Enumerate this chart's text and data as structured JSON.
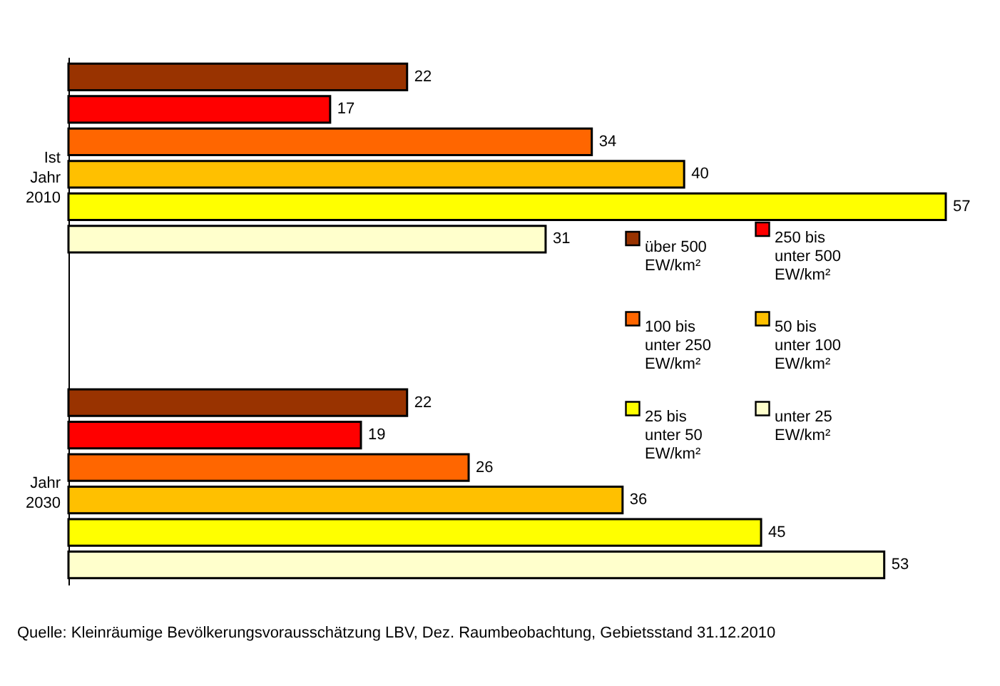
{
  "chart_data": {
    "type": "bar",
    "orientation": "horizontal",
    "categories": [
      "Ist Jahr 2010",
      "Jahr 2030"
    ],
    "series": [
      {
        "name": "über 500 EW/km²",
        "color": "#993300",
        "values": [
          22,
          22
        ]
      },
      {
        "name": "250 bis unter 500 EW/km²",
        "color": "#ff0000",
        "values": [
          17,
          19
        ]
      },
      {
        "name": "100 bis unter 250 EW/km²",
        "color": "#ff6600",
        "values": [
          34,
          26
        ]
      },
      {
        "name": "50 bis unter 100 EW/km²",
        "color": "#ffc000",
        "values": [
          40,
          36
        ]
      },
      {
        "name": "25 bis unter 50 EW/km²",
        "color": "#ffff00",
        "values": [
          57,
          45
        ]
      },
      {
        "name": "unter 25 EW/km²",
        "color": "#ffffcc",
        "values": [
          31,
          53
        ]
      }
    ],
    "data_labels": true,
    "legend": "right",
    "tick_labels": "y",
    "annotations": [
      "Quelle: Kleinräumige Bevölkerungsvorausschätzung LBV, Dez. Raumbeobachtung, Gebietsstand 31.12.2010"
    ]
  }
}
